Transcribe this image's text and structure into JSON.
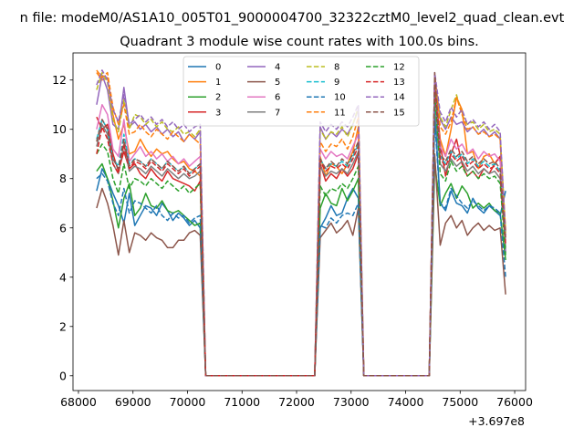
{
  "figure": {
    "suptitle": "n file: modeM0/AS1A10_005T01_9000004700_32322cztM0_level2_quad_clean.evt"
  },
  "chart_data": {
    "type": "line",
    "title": "Quadrant 3 module wise count rates with 100.0s bins.",
    "xlabel": "",
    "ylabel": "",
    "x_offset_label": "+3.697e8",
    "xlim": [
      67900,
      76200
    ],
    "ylim": [
      -0.6,
      13.1
    ],
    "xticks": [
      68000,
      69000,
      70000,
      71000,
      72000,
      73000,
      74000,
      75000,
      76000
    ],
    "yticks": [
      0,
      2,
      4,
      6,
      8,
      10,
      12
    ],
    "grid": false,
    "legend": {
      "placement": "top-center",
      "ncol": 4
    },
    "segments": [
      {
        "x_start": 68333,
        "x_end": 70233,
        "step": 100
      },
      {
        "x_start": 72433,
        "x_end": 73133,
        "step": 100
      },
      {
        "x_start": 74533,
        "x_end": 75833,
        "step": 100
      }
    ],
    "series": [
      {
        "name": "0",
        "color": "#1f77b4",
        "style": "solid",
        "seg1": [
          7.5,
          8.4,
          8.0,
          7.4,
          6.9,
          6.2,
          7.4,
          6.1,
          6.5,
          6.9,
          6.8,
          6.5,
          7.0,
          6.7,
          6.3,
          6.6,
          6.4,
          6.1,
          6.3,
          6.0
        ],
        "seg2": [
          6.0,
          6.4,
          6.9,
          6.5,
          6.6,
          7.2,
          7.6,
          7.2
        ],
        "seg3": [
          10.8,
          7.0,
          6.7,
          7.5,
          7.0,
          6.9,
          6.6,
          7.2,
          6.8,
          6.6,
          6.9,
          6.7,
          6.5,
          7.5
        ]
      },
      {
        "name": "1",
        "color": "#ff7f0e",
        "style": "solid",
        "seg1": [
          12.3,
          12.0,
          12.1,
          10.6,
          9.6,
          10.2,
          9.0,
          9.1,
          9.6,
          9.2,
          8.9,
          9.2,
          9.0,
          9.1,
          8.8,
          8.6,
          8.7,
          8.4,
          8.3,
          8.1
        ],
        "seg2": [
          8.9,
          8.1,
          8.6,
          8.5,
          8.2,
          8.6,
          9.1,
          10.1
        ],
        "seg3": [
          11.8,
          9.6,
          8.9,
          10.0,
          11.3,
          10.8,
          9.0,
          9.1,
          8.4,
          8.9,
          9.0,
          8.6,
          8.9,
          5.9
        ]
      },
      {
        "name": "2",
        "color": "#2ca02c",
        "style": "solid",
        "seg1": [
          8.3,
          8.6,
          8.0,
          7.1,
          6.0,
          7.2,
          7.8,
          6.5,
          6.8,
          7.4,
          6.9,
          6.8,
          7.1,
          6.7,
          6.6,
          6.7,
          6.5,
          6.3,
          6.1,
          6.2
        ],
        "seg2": [
          6.8,
          7.4,
          7.0,
          6.9,
          7.6,
          7.1,
          7.5,
          8.0
        ],
        "seg3": [
          8.6,
          6.9,
          7.4,
          7.8,
          7.2,
          7.7,
          7.4,
          6.8,
          7.0,
          6.8,
          7.0,
          6.7,
          6.6,
          4.7
        ]
      },
      {
        "name": "3",
        "color": "#d62728",
        "style": "solid",
        "seg1": [
          10.5,
          10.0,
          10.2,
          9.0,
          8.3,
          9.1,
          8.4,
          8.6,
          8.2,
          8.0,
          8.4,
          8.1,
          7.9,
          8.3,
          8.0,
          7.9,
          7.8,
          7.7,
          7.5,
          7.9
        ],
        "seg2": [
          8.6,
          7.9,
          8.2,
          8.0,
          8.4,
          8.1,
          8.4,
          9.0
        ],
        "seg3": [
          12.1,
          9.4,
          8.1,
          9.0,
          9.6,
          8.6,
          8.1,
          8.3,
          8.0,
          8.4,
          8.2,
          8.6,
          8.9,
          5.6
        ]
      },
      {
        "name": "4",
        "color": "#9467bd",
        "style": "solid",
        "seg1": [
          11.0,
          12.2,
          11.6,
          10.2,
          10.0,
          11.7,
          10.1,
          10.3,
          10.0,
          10.2,
          9.9,
          10.1,
          9.8,
          10.0,
          9.7,
          9.9,
          9.5,
          9.8,
          9.6,
          9.9
        ],
        "seg2": [
          10.1,
          9.6,
          9.9,
          9.7,
          10.0,
          9.8,
          10.2,
          10.8
        ],
        "seg3": [
          12.2,
          10.4,
          10.0,
          10.5,
          10.2,
          10.3,
          9.9,
          10.1,
          9.8,
          10.0,
          9.7,
          9.9,
          9.6,
          5.0
        ]
      },
      {
        "name": "5",
        "color": "#8c564b",
        "style": "solid",
        "seg1": [
          6.8,
          7.6,
          7.0,
          6.1,
          4.9,
          6.3,
          5.0,
          5.8,
          5.7,
          5.5,
          5.8,
          5.6,
          5.5,
          5.2,
          5.2,
          5.5,
          5.5,
          5.8,
          5.9,
          5.7
        ],
        "seg2": [
          5.6,
          5.9,
          6.2,
          5.8,
          6.0,
          6.3,
          5.7,
          6.8
        ],
        "seg3": [
          9.0,
          5.3,
          6.2,
          6.5,
          6.0,
          6.3,
          5.7,
          6.0,
          6.2,
          5.9,
          6.1,
          5.9,
          6.0,
          3.3
        ]
      },
      {
        "name": "6",
        "color": "#e377c2",
        "style": "solid",
        "seg1": [
          10.0,
          11.0,
          10.6,
          9.2,
          8.9,
          10.4,
          8.7,
          9.0,
          9.3,
          8.9,
          9.1,
          8.8,
          9.0,
          8.7,
          8.9,
          8.6,
          8.8,
          8.5,
          8.7,
          8.9
        ],
        "seg2": [
          9.2,
          8.8,
          9.1,
          8.9,
          9.0,
          8.8,
          9.3,
          9.8
        ],
        "seg3": [
          11.7,
          9.3,
          8.9,
          9.6,
          9.2,
          9.4,
          9.0,
          9.2,
          8.8,
          9.1,
          8.9,
          9.0,
          8.7,
          5.4
        ]
      },
      {
        "name": "7",
        "color": "#7f7f7f",
        "style": "solid",
        "seg1": [
          9.3,
          10.2,
          9.8,
          8.6,
          8.2,
          9.4,
          8.3,
          8.5,
          8.4,
          8.2,
          8.5,
          8.3,
          8.1,
          8.4,
          8.2,
          8.0,
          8.2,
          8.0,
          8.1,
          8.3
        ],
        "seg2": [
          8.5,
          8.1,
          8.3,
          8.2,
          8.4,
          8.2,
          8.6,
          9.1
        ],
        "seg3": [
          10.9,
          8.6,
          8.3,
          8.8,
          8.5,
          8.7,
          8.3,
          8.5,
          8.2,
          8.4,
          8.2,
          8.3,
          8.0,
          5.2
        ]
      },
      {
        "name": "8",
        "color": "#bcbd22",
        "style": "dashed",
        "seg1": [
          11.6,
          12.3,
          11.9,
          10.4,
          9.9,
          11.2,
          10.0,
          10.6,
          10.5,
          10.2,
          10.4,
          10.1,
          10.3,
          10.0,
          9.9,
          10.1,
          9.8,
          9.9,
          9.7,
          10.0
        ],
        "seg2": [
          10.0,
          9.6,
          9.9,
          9.8,
          10.1,
          9.7,
          10.2,
          10.9
        ],
        "seg3": [
          12.0,
          10.5,
          10.1,
          10.8,
          11.4,
          10.6,
          10.2,
          10.3,
          10.0,
          10.2,
          9.9,
          10.0,
          9.8,
          5.8
        ]
      },
      {
        "name": "9",
        "color": "#17becf",
        "style": "dashed",
        "seg1": [
          9.6,
          10.4,
          10.0,
          8.8,
          8.5,
          9.8,
          8.6,
          8.8,
          8.7,
          8.5,
          8.8,
          8.6,
          8.4,
          8.7,
          8.5,
          8.3,
          8.5,
          8.2,
          8.4,
          8.6
        ],
        "seg2": [
          8.8,
          8.4,
          8.6,
          8.5,
          8.7,
          8.5,
          8.9,
          9.4
        ],
        "seg3": [
          11.2,
          8.9,
          8.6,
          9.1,
          8.8,
          9.0,
          8.6,
          8.8,
          8.5,
          8.7,
          8.5,
          8.6,
          8.3,
          5.3
        ]
      },
      {
        "name": "10",
        "color": "#1f77b4",
        "style": "dashed",
        "seg1": [
          8.0,
          8.2,
          7.9,
          7.0,
          6.5,
          7.6,
          6.6,
          7.1,
          7.0,
          6.8,
          6.6,
          6.9,
          6.5,
          6.3,
          6.6,
          6.4,
          6.5,
          6.2,
          6.4,
          6.5
        ],
        "seg2": [
          6.1,
          6.0,
          6.4,
          6.2,
          6.5,
          6.6,
          6.5,
          7.0
        ],
        "seg3": [
          10.4,
          7.0,
          6.8,
          7.6,
          7.3,
          7.0,
          6.8,
          7.1,
          6.9,
          6.7,
          6.9,
          6.8,
          6.6,
          4.0
        ]
      },
      {
        "name": "11",
        "color": "#ff7f0e",
        "style": "dashed",
        "seg1": [
          12.4,
          12.1,
          12.3,
          10.9,
          10.2,
          11.0,
          9.8,
          9.9,
          10.2,
          9.9,
          9.7,
          10.0,
          9.8,
          9.6,
          9.9,
          9.7,
          9.5,
          9.8,
          9.6,
          9.4
        ],
        "seg2": [
          9.5,
          9.1,
          9.4,
          9.3,
          9.6,
          9.2,
          9.7,
          10.5
        ],
        "seg3": [
          12.2,
          10.1,
          9.8,
          10.3,
          11.3,
          10.6,
          10.0,
          10.1,
          9.8,
          9.9,
          9.7,
          9.8,
          9.6,
          5.9
        ]
      },
      {
        "name": "12",
        "color": "#2ca02c",
        "style": "dashed",
        "seg1": [
          9.0,
          9.4,
          9.1,
          8.0,
          7.4,
          8.6,
          7.6,
          8.0,
          7.9,
          7.7,
          8.0,
          7.8,
          7.6,
          7.9,
          7.7,
          7.5,
          7.7,
          7.4,
          7.6,
          7.8
        ],
        "seg2": [
          7.7,
          7.3,
          7.6,
          7.5,
          7.8,
          7.6,
          8.0,
          8.5
        ],
        "seg3": [
          11.6,
          8.2,
          7.9,
          8.7,
          8.3,
          8.5,
          8.1,
          8.3,
          8.0,
          8.2,
          8.0,
          8.1,
          7.8,
          4.9
        ]
      },
      {
        "name": "13",
        "color": "#d62728",
        "style": "dashed",
        "seg1": [
          9.0,
          10.1,
          9.6,
          8.6,
          8.2,
          9.4,
          8.4,
          8.7,
          8.6,
          8.4,
          8.7,
          8.5,
          8.3,
          8.6,
          8.4,
          8.2,
          8.4,
          8.1,
          8.3,
          8.5
        ],
        "seg2": [
          8.7,
          8.3,
          8.5,
          8.4,
          8.6,
          8.4,
          8.8,
          9.3
        ],
        "seg3": [
          11.9,
          8.8,
          8.5,
          9.0,
          8.7,
          8.9,
          8.5,
          8.7,
          8.4,
          8.6,
          8.4,
          8.5,
          8.2,
          5.3
        ]
      },
      {
        "name": "14",
        "color": "#9467bd",
        "style": "dashed",
        "seg1": [
          11.8,
          12.4,
          12.0,
          10.8,
          10.3,
          11.4,
          10.2,
          10.4,
          10.6,
          10.3,
          10.5,
          10.2,
          10.4,
          10.1,
          10.3,
          10.0,
          10.2,
          9.9,
          10.1,
          10.2
        ],
        "seg2": [
          10.3,
          9.9,
          10.2,
          10.0,
          10.3,
          10.1,
          10.5,
          11.0
        ],
        "seg3": [
          12.3,
          10.7,
          10.3,
          10.9,
          10.5,
          10.8,
          10.2,
          10.4,
          10.1,
          10.3,
          10.0,
          10.2,
          9.9,
          5.7
        ]
      },
      {
        "name": "15",
        "color": "#8c564b",
        "style": "dashed",
        "seg1": [
          9.5,
          10.4,
          10.0,
          8.8,
          8.4,
          9.6,
          8.5,
          8.8,
          8.7,
          8.5,
          8.8,
          8.6,
          8.4,
          8.7,
          8.5,
          8.3,
          8.5,
          8.2,
          8.4,
          8.6
        ],
        "seg2": [
          8.8,
          8.4,
          8.7,
          8.5,
          8.8,
          8.6,
          9.0,
          9.5
        ],
        "seg3": [
          12.3,
          9.0,
          8.7,
          9.2,
          8.9,
          9.1,
          8.7,
          8.9,
          8.6,
          8.8,
          8.6,
          8.7,
          8.4,
          5.5
        ]
      }
    ]
  }
}
